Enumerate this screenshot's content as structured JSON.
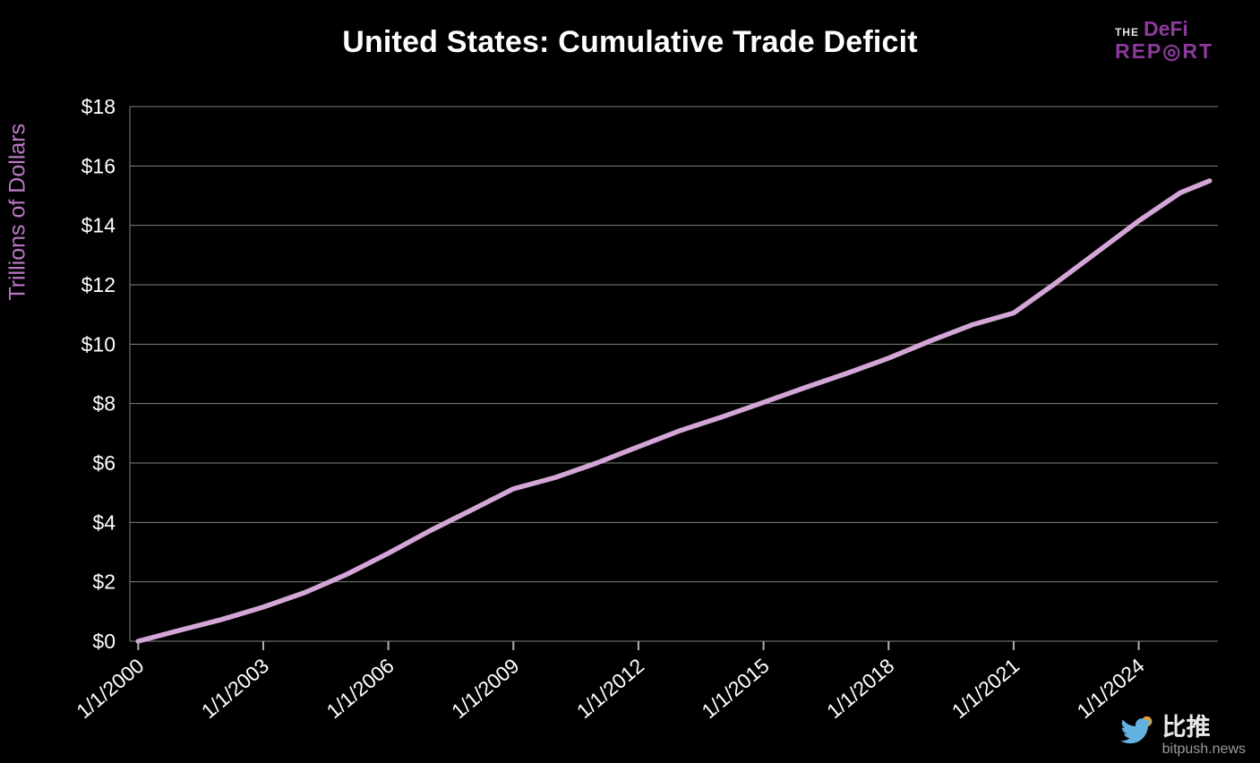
{
  "header": {
    "title": "United States: Cumulative Trade Deficit"
  },
  "logo": {
    "the": "THE",
    "defi": "DeFi",
    "report": "REP◎RT"
  },
  "watermark": {
    "name": "比推",
    "domain": "bitpush.news"
  },
  "colors": {
    "line": "#d4a6d8",
    "grid": "#828282",
    "tick": "#b0b0b0",
    "axis_text": "#ffffff",
    "ylabel": "#bb77c5",
    "logo": "#8d3a9e",
    "bird": "#63b1e0",
    "coin": "#e2a23c"
  },
  "chart_data": {
    "type": "line",
    "title": "United States: Cumulative Trade Deficit",
    "xlabel": "",
    "ylabel": "Trillions of Dollars",
    "grid": true,
    "legend": "none",
    "xlim": [
      1999.8,
      2025.9
    ],
    "ylim": [
      0,
      18
    ],
    "x": [
      2000,
      2001,
      2002,
      2003,
      2004,
      2005,
      2006,
      2007,
      2008,
      2009,
      2010,
      2011,
      2012,
      2013,
      2014,
      2015,
      2016,
      2017,
      2018,
      2019,
      2020,
      2021,
      2022,
      2023,
      2024,
      2025,
      2025.7
    ],
    "values": [
      0,
      0.37,
      0.73,
      1.15,
      1.64,
      2.25,
      2.96,
      3.72,
      4.42,
      5.13,
      5.51,
      6.0,
      6.55,
      7.09,
      7.55,
      8.04,
      8.54,
      9.02,
      9.53,
      10.11,
      10.65,
      11.05,
      12.05,
      13.1,
      14.15,
      15.1,
      15.5
    ],
    "series_name": "Cumulative Trade Deficit",
    "xtick_years": [
      2000,
      2003,
      2006,
      2009,
      2012,
      2015,
      2018,
      2021,
      2024
    ],
    "xtick_labels": [
      "1/1/2000",
      "1/1/2003",
      "1/1/2006",
      "1/1/2009",
      "1/1/2012",
      "1/1/2015",
      "1/1/2018",
      "1/1/2021",
      "1/1/2024"
    ],
    "ytick_values": [
      0,
      2,
      4,
      6,
      8,
      10,
      12,
      14,
      16,
      18
    ],
    "ytick_labels": [
      "$0",
      "$2",
      "$4",
      "$6",
      "$8",
      "$10",
      "$12",
      "$14",
      "$16",
      "$18"
    ]
  }
}
